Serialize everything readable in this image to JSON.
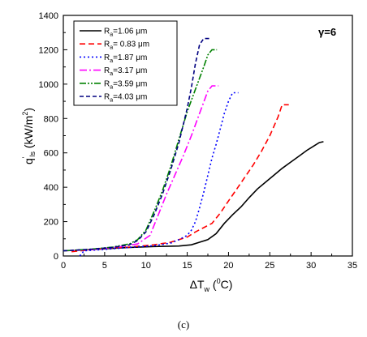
{
  "chart_data": {
    "type": "line",
    "annotation": "γ=6",
    "caption": "(c)",
    "xaxis": {
      "title_main": "ΔT",
      "title_sub": "w",
      "title_open": " (",
      "title_sup": "0",
      "title_unit": "C)",
      "ticks": [
        "0",
        "5",
        "10",
        "15",
        "20",
        "25",
        "30",
        "35"
      ],
      "range": [
        0,
        35
      ]
    },
    "yaxis": {
      "title_main": "q",
      "title_sup": "'",
      "title_sub": "ls",
      "title_unit_open": " (kW/m",
      "title_unit_sup": "2",
      "title_unit_close": ")",
      "ticks": [
        "0",
        "200",
        "400",
        "600",
        "800",
        "1000",
        "1200",
        "1400"
      ],
      "range": [
        0,
        1400
      ]
    },
    "legend_prefix": "R",
    "legend_prefix_sub": "a",
    "series": [
      {
        "name": "=1.06 μm",
        "color": "#000000",
        "dash": "solid",
        "points": [
          [
            2.5,
            35
          ],
          [
            5,
            42
          ],
          [
            8,
            50
          ],
          [
            11,
            55
          ],
          [
            14,
            58
          ],
          [
            15.5,
            65
          ],
          [
            16.5,
            80
          ],
          [
            17.5,
            95
          ],
          [
            18.5,
            130
          ],
          [
            19.5,
            190
          ],
          [
            20.5,
            240
          ],
          [
            21.5,
            285
          ],
          [
            22.5,
            340
          ],
          [
            23.5,
            390
          ],
          [
            24.5,
            430
          ],
          [
            25.5,
            470
          ],
          [
            26.5,
            510
          ],
          [
            27.5,
            545
          ],
          [
            28.5,
            580
          ],
          [
            29.5,
            615
          ],
          [
            30.5,
            645
          ],
          [
            31,
            660
          ],
          [
            31.5,
            665
          ]
        ]
      },
      {
        "name": "= 0.83 μm",
        "color": "#ff0000",
        "dash": "7,4",
        "points": [
          [
            1,
            25
          ],
          [
            3,
            35
          ],
          [
            5,
            45
          ],
          [
            8,
            52
          ],
          [
            11,
            65
          ],
          [
            13,
            80
          ],
          [
            14,
            95
          ],
          [
            15,
            110
          ],
          [
            16,
            140
          ],
          [
            17,
            165
          ],
          [
            18,
            190
          ],
          [
            19,
            250
          ],
          [
            20,
            320
          ],
          [
            21,
            390
          ],
          [
            22,
            460
          ],
          [
            23,
            530
          ],
          [
            24,
            610
          ],
          [
            25,
            700
          ],
          [
            26,
            810
          ],
          [
            26.5,
            880
          ],
          [
            27.3,
            880
          ]
        ]
      },
      {
        "name": "=1.87 μm",
        "color": "#0000ff",
        "dash": "2,3",
        "points": [
          [
            2,
            0
          ],
          [
            2.5,
            30
          ],
          [
            5,
            38
          ],
          [
            8,
            50
          ],
          [
            11,
            60
          ],
          [
            13,
            75
          ],
          [
            14,
            95
          ],
          [
            15,
            120
          ],
          [
            15.5,
            150
          ],
          [
            16,
            200
          ],
          [
            16.5,
            280
          ],
          [
            17,
            370
          ],
          [
            17.5,
            470
          ],
          [
            18,
            570
          ],
          [
            18.5,
            650
          ],
          [
            19,
            740
          ],
          [
            19.5,
            830
          ],
          [
            20,
            900
          ],
          [
            20.5,
            950
          ],
          [
            21.2,
            950
          ]
        ]
      },
      {
        "name": "=3.17 μm",
        "color": "#ff00ff",
        "dash": "9,3,2,3",
        "points": [
          [
            0,
            30
          ],
          [
            3,
            36
          ],
          [
            5,
            45
          ],
          [
            7,
            55
          ],
          [
            9,
            70
          ],
          [
            10.5,
            120
          ],
          [
            11.5,
            240
          ],
          [
            12.5,
            360
          ],
          [
            13.5,
            470
          ],
          [
            14.5,
            580
          ],
          [
            15.5,
            700
          ],
          [
            16.5,
            830
          ],
          [
            17.5,
            960
          ],
          [
            18,
            990
          ],
          [
            18.8,
            990
          ]
        ]
      },
      {
        "name": "=3.59 μm",
        "color": "#008000",
        "dash": "8,2,2,2,2,2",
        "points": [
          [
            0,
            30
          ],
          [
            3,
            38
          ],
          [
            6,
            52
          ],
          [
            8,
            70
          ],
          [
            9,
            95
          ],
          [
            10,
            150
          ],
          [
            11,
            260
          ],
          [
            12,
            380
          ],
          [
            13,
            520
          ],
          [
            14,
            680
          ],
          [
            15,
            840
          ],
          [
            16,
            970
          ],
          [
            17,
            1100
          ],
          [
            17.5,
            1170
          ],
          [
            18,
            1200
          ],
          [
            18.6,
            1200
          ]
        ]
      },
      {
        "name": "=4.03 μm",
        "color": "#000080",
        "dash": "5,3",
        "points": [
          [
            0,
            30
          ],
          [
            3,
            38
          ],
          [
            6,
            50
          ],
          [
            8,
            65
          ],
          [
            9,
            90
          ],
          [
            10,
            140
          ],
          [
            11,
            240
          ],
          [
            12,
            360
          ],
          [
            13,
            500
          ],
          [
            14,
            660
          ],
          [
            15,
            860
          ],
          [
            15.5,
            980
          ],
          [
            16,
            1120
          ],
          [
            16.5,
            1230
          ],
          [
            17,
            1265
          ],
          [
            17.8,
            1265
          ]
        ]
      }
    ]
  }
}
